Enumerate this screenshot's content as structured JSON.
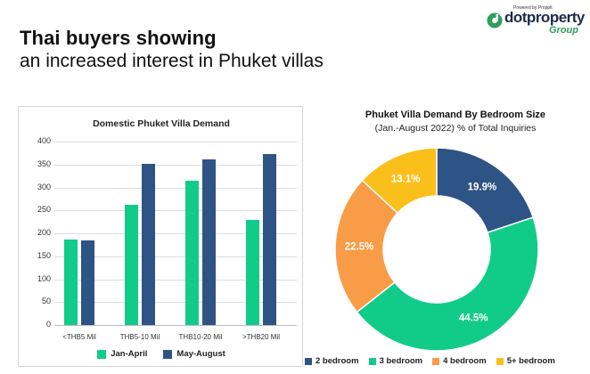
{
  "headline": {
    "line1": "Thai buyers showing",
    "line2": "an increased interest in Phuket villas"
  },
  "logo": {
    "powered_by": "Powered by Propplt",
    "brand": "dotproperty",
    "group": "Group"
  },
  "colors": {
    "jan_april": "#11cc88",
    "may_august": "#2e5385",
    "bed2": "#2e5385",
    "bed3": "#11cc88",
    "bed4": "#f99c47",
    "bed5": "#fbbf1c"
  },
  "chart_data": [
    {
      "type": "bar",
      "title": "Domestic Phuket Villa Demand",
      "xlabel": "",
      "ylabel": "",
      "categories": [
        "<THB5 Mil",
        "THB5-10 Mil",
        "THB10-20 Mil",
        ">THB20 Mil"
      ],
      "series": [
        {
          "name": "Jan-April",
          "color": "#11cc88",
          "values": [
            187,
            262,
            314,
            229
          ]
        },
        {
          "name": "May-August",
          "color": "#2e5385",
          "values": [
            185,
            352,
            362,
            373
          ]
        }
      ],
      "ylim": [
        0,
        400
      ],
      "yticks": [
        0,
        50,
        100,
        150,
        200,
        250,
        300,
        350,
        400
      ],
      "grid": true,
      "legend_position": "bottom"
    },
    {
      "type": "pie",
      "donut": true,
      "title": "Phuket Villa Demand By Bedroom Size",
      "subtitle": "(Jan.-August 2022) % of Total Inquiries",
      "categories": [
        "2 bedroom",
        "3 bedroom",
        "4 bedroom",
        "5+ bedroom"
      ],
      "values": [
        19.9,
        44.5,
        22.5,
        13.1
      ],
      "labels": [
        "19.9%",
        "44.5%",
        "22.5%",
        "13.1%"
      ],
      "colors": [
        "#2e5385",
        "#11cc88",
        "#f99c47",
        "#fbbf1c"
      ],
      "legend_position": "bottom"
    }
  ],
  "bar_chart": {
    "title": "Domestic Phuket Villa Demand",
    "yticks": [
      "400",
      "350",
      "300",
      "250",
      "200",
      "150",
      "100",
      "50",
      "0"
    ],
    "categories": [
      "<THB5 Mil",
      "THB5-10 Mil",
      "THB10-20 Mil",
      ">THB20 Mil"
    ],
    "legend": [
      "Jan-April",
      "May-August"
    ]
  },
  "donut_chart": {
    "title": "Phuket Villa Demand By Bedroom Size",
    "subtitle": "(Jan.-August 2022) % of Total Inquiries",
    "labels": [
      "19.9%",
      "44.5%",
      "22.5%",
      "13.1%"
    ],
    "legend": [
      "2 bedroom",
      "3 bedroom",
      "4 bedroom",
      "5+ bedroom"
    ]
  }
}
